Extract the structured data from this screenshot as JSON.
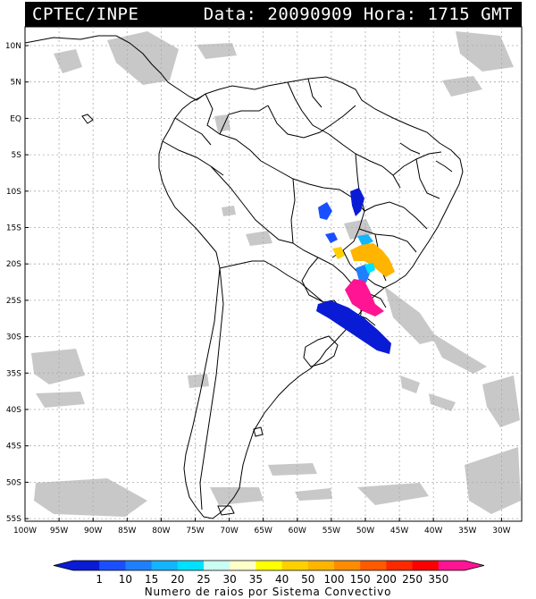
{
  "header": {
    "source": "CPTEC/INPE",
    "datetime": "Data: 20090909 Hora: 1715 GMT"
  },
  "lat_labels": [
    "10N",
    "5N",
    "EQ",
    "5S",
    "10S",
    "15S",
    "20S",
    "25S",
    "30S",
    "35S",
    "40S",
    "45S",
    "50S",
    "55S"
  ],
  "lon_labels": [
    "100W",
    "95W",
    "90W",
    "85W",
    "80W",
    "75W",
    "70W",
    "65W",
    "60W",
    "55W",
    "50W",
    "45W",
    "40W",
    "35W",
    "30W"
  ],
  "colorbar": {
    "labels": [
      "1",
      "10",
      "15",
      "20",
      "25",
      "30",
      "35",
      "40",
      "50",
      "100",
      "150",
      "200",
      "250",
      "350"
    ],
    "colors": [
      "#0a1bd6",
      "#1a4fff",
      "#1e80ff",
      "#14b4ff",
      "#00e0ff",
      "#c8fff2",
      "#ffffc8",
      "#ffff00",
      "#ffd000",
      "#ffb400",
      "#ff8c00",
      "#ff5a00",
      "#ff2800",
      "#ff0000",
      "#ff1493"
    ],
    "caption": "Numero de raios por Sistema Convectivo"
  },
  "colors": {
    "frame": "#000000",
    "grid": "#aaaaaa",
    "cloud": "#c8c8c8",
    "border": "#000000"
  }
}
